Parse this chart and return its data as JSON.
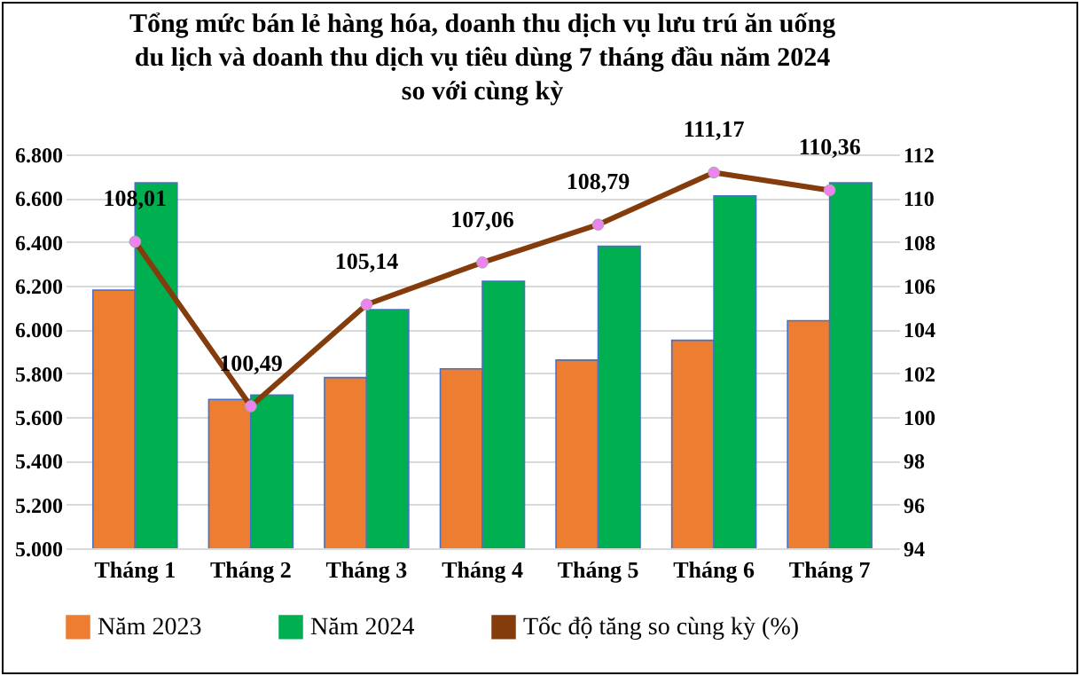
{
  "chart_data": {
    "type": "bar",
    "title": "Tổng mức bán lẻ hàng hóa, doanh thu dịch vụ lưu trú ăn uống\ndu lịch và doanh thu dịch vụ tiêu dùng 7 tháng đầu năm 2024\nso với cùng kỳ",
    "categories": [
      "Tháng 1",
      "Tháng 2",
      "Tháng 3",
      "Tháng 4",
      "Tháng 5",
      "Tháng 6",
      "Tháng 7"
    ],
    "series": [
      {
        "name": "Năm 2023",
        "color": "#ed7d31",
        "values": [
          6180,
          5680,
          5780,
          5820,
          5860,
          5950,
          6040
        ]
      },
      {
        "name": "Năm 2024",
        "color": "#00b050",
        "values": [
          6670,
          5700,
          6090,
          6220,
          6380,
          6610,
          6670
        ]
      },
      {
        "name": "Tốc độ tăng so cùng kỳ (%)",
        "type": "line",
        "axis": "y2",
        "color": "#843c0c",
        "marker": "circle",
        "values": [
          108.01,
          100.49,
          105.14,
          107.06,
          108.79,
          111.17,
          110.36
        ],
        "value_labels": [
          "108,01",
          "100,49",
          "105,14",
          "107,06",
          "108,79",
          "111,17",
          "110,36"
        ]
      }
    ],
    "ylim": [
      5000,
      6800
    ],
    "yticks": [
      {
        "value": 5000,
        "label": "5.000"
      },
      {
        "value": 5200,
        "label": "5.200"
      },
      {
        "value": 5400,
        "label": "5.400"
      },
      {
        "value": 5600,
        "label": "5.600"
      },
      {
        "value": 5800,
        "label": "5.800"
      },
      {
        "value": 6000,
        "label": "6.000"
      },
      {
        "value": 6200,
        "label": "6.200"
      },
      {
        "value": 6400,
        "label": "6.400"
      },
      {
        "value": 6600,
        "label": "6.600"
      },
      {
        "value": 6800,
        "label": "6.800"
      }
    ],
    "y2lim": [
      94,
      112
    ],
    "y2ticks": [
      94,
      96,
      98,
      100,
      102,
      104,
      106,
      108,
      110,
      112
    ],
    "grid": "y",
    "legend": "bottom"
  }
}
